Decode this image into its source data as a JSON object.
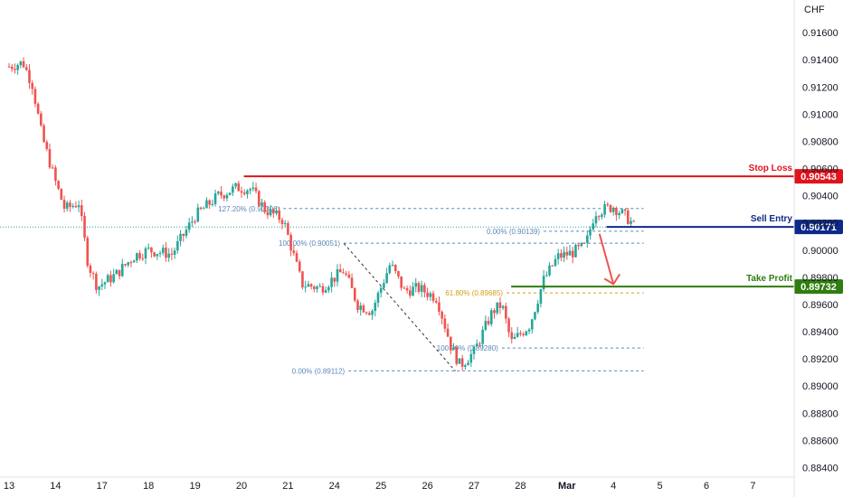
{
  "currency": "CHF",
  "colors": {
    "up": "#26a69a",
    "down": "#ef5350",
    "stop": "#e0141e",
    "entry": "#0d2a8a",
    "profit": "#2f7d0e",
    "fib": "#5b87b8",
    "fib_golden": "#d4a017"
  },
  "chart_data": {
    "type": "candlestick",
    "x_tick_labels": [
      "13",
      "14",
      "17",
      "18",
      "19",
      "20",
      "21",
      "24",
      "25",
      "26",
      "27",
      "28",
      "Mar",
      "4",
      "5",
      "6",
      "7"
    ],
    "y_ticks": [
      0.884,
      0.886,
      0.888,
      0.89,
      0.892,
      0.894,
      0.896,
      0.898,
      0.9,
      0.902,
      0.904,
      0.906,
      0.908,
      0.91,
      0.912,
      0.914,
      0.916
    ],
    "y_tick_labels": [
      "0.88400",
      "0.88600",
      "0.88800",
      "0.89000",
      "0.89200",
      "0.89400",
      "0.89600",
      "0.89800",
      "0.90000",
      "0.90200",
      "0.90400",
      "0.90600",
      "0.90800",
      "0.91000",
      "0.91200",
      "0.91400",
      "0.91600"
    ],
    "ylim": [
      0.8833,
      0.9184
    ],
    "last_price": 0.9017,
    "close_path": [
      [
        0,
        0.9135
      ],
      [
        0.3,
        0.9138
      ],
      [
        0.5,
        0.9122
      ],
      [
        0.7,
        0.9085
      ],
      [
        1.0,
        0.905
      ],
      [
        1.2,
        0.903
      ],
      [
        1.5,
        0.9035
      ],
      [
        1.7,
        0.899
      ],
      [
        1.9,
        0.8973
      ],
      [
        2.3,
        0.8982
      ],
      [
        2.7,
        0.8996
      ],
      [
        3.0,
        0.9
      ],
      [
        3.5,
        0.8997
      ],
      [
        4.0,
        0.9025
      ],
      [
        4.5,
        0.904
      ],
      [
        4.9,
        0.9046
      ],
      [
        5.2,
        0.9045
      ],
      [
        5.5,
        0.903
      ],
      [
        5.9,
        0.9022
      ],
      [
        6.3,
        0.8975
      ],
      [
        6.7,
        0.8972
      ],
      [
        7.2,
        0.8985
      ],
      [
        7.5,
        0.896
      ],
      [
        7.8,
        0.8955
      ],
      [
        8.2,
        0.899
      ],
      [
        8.5,
        0.897
      ],
      [
        8.8,
        0.8972
      ],
      [
        9.2,
        0.8965
      ],
      [
        9.5,
        0.893
      ],
      [
        9.7,
        0.8915
      ],
      [
        10.0,
        0.8925
      ],
      [
        10.4,
        0.8955
      ],
      [
        10.6,
        0.896
      ],
      [
        10.8,
        0.8932
      ],
      [
        11.2,
        0.8945
      ],
      [
        11.5,
        0.8978
      ],
      [
        11.8,
        0.8995
      ],
      [
        12.1,
        0.8998
      ],
      [
        12.4,
        0.9003
      ],
      [
        12.6,
        0.9028
      ],
      [
        13.0,
        0.9032
      ],
      [
        13.35,
        0.9022
      ],
      [
        13.45,
        0.9017
      ]
    ],
    "levels": [
      {
        "name": "Stop Loss",
        "value": 0.90543,
        "label": "0.90543"
      },
      {
        "name": "Sell Entry",
        "value": 0.90171,
        "label": "0.90171"
      },
      {
        "name": "Take Profit",
        "value": 0.89732,
        "label": "0.89732"
      }
    ],
    "fib_levels": [
      {
        "label": "127.20% (0.90306)",
        "value": 0.90306,
        "x0": 5.9,
        "x1": 13.3
      },
      {
        "label": "0.00% (0.90139)",
        "value": 0.90139,
        "x0": 11.5,
        "x1": 13.3
      },
      {
        "label": "100.00% (0.90051)",
        "value": 0.90051,
        "x0": 7.2,
        "x1": 13.3
      },
      {
        "label": "61.80% (0.89685)",
        "value": 0.89685,
        "x0": 10.7,
        "x1": 13.3
      },
      {
        "label": "100.00% (0.89280)",
        "value": 0.8928,
        "x0": 10.6,
        "x1": 13.3
      },
      {
        "label": "0.00% (0.89112)",
        "value": 0.89112,
        "x0": 7.3,
        "x1": 13.3
      }
    ],
    "dashed_swing": [
      [
        7.2,
        0.9005
      ],
      [
        9.6,
        0.8911
      ]
    ],
    "arrow": [
      [
        12.7,
        0.9012
      ],
      [
        13.0,
        0.8975
      ]
    ]
  }
}
